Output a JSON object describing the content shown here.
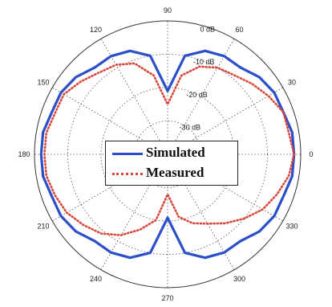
{
  "chart_data": {
    "type": "polar-line",
    "radial_axis": {
      "unit": "dB",
      "ticks": [
        {
          "value": 0,
          "label": "0 dB"
        },
        {
          "value": -10,
          "label": "-10 dB"
        },
        {
          "value": -20,
          "label": "-20 dB"
        },
        {
          "value": -30,
          "label": "-30 dB"
        }
      ],
      "range": [
        -40,
        0
      ]
    },
    "angular_axis": {
      "unit": "deg",
      "ticks": [
        0,
        30,
        60,
        90,
        120,
        150,
        180,
        210,
        240,
        270,
        300,
        330
      ],
      "tick_labels": [
        "0",
        "30",
        "60",
        "90",
        "120",
        "150",
        "180",
        "210",
        "240",
        "270",
        "300",
        "330"
      ]
    },
    "grid": true,
    "legend_placement": "center",
    "series": [
      {
        "name": "Simulated",
        "color": "#2b4fc9",
        "style": "solid",
        "points": [
          [
            0,
            -2
          ],
          [
            10,
            -2
          ],
          [
            20,
            -3
          ],
          [
            30,
            -3
          ],
          [
            40,
            -4
          ],
          [
            50,
            -6
          ],
          [
            60,
            -6
          ],
          [
            70,
            -7
          ],
          [
            80,
            -10
          ],
          [
            90,
            -21
          ],
          [
            100,
            -10
          ],
          [
            110,
            -7
          ],
          [
            120,
            -6
          ],
          [
            130,
            -6
          ],
          [
            140,
            -4
          ],
          [
            150,
            -3
          ],
          [
            160,
            -3
          ],
          [
            170,
            -2
          ],
          [
            180,
            -2
          ],
          [
            190,
            -2
          ],
          [
            200,
            -3
          ],
          [
            210,
            -3
          ],
          [
            220,
            -4
          ],
          [
            230,
            -6
          ],
          [
            240,
            -6
          ],
          [
            250,
            -7
          ],
          [
            260,
            -10
          ],
          [
            270,
            -21
          ],
          [
            280,
            -10
          ],
          [
            290,
            -7
          ],
          [
            300,
            -6
          ],
          [
            310,
            -6
          ],
          [
            320,
            -4
          ],
          [
            330,
            -3
          ],
          [
            340,
            -3
          ],
          [
            350,
            -2
          ]
        ]
      },
      {
        "name": "Measured",
        "color": "#d9473b",
        "style": "dotted",
        "points": [
          [
            0,
            -2
          ],
          [
            10,
            -3
          ],
          [
            20,
            -3
          ],
          [
            30,
            -5
          ],
          [
            40,
            -7
          ],
          [
            50,
            -9
          ],
          [
            60,
            -10
          ],
          [
            70,
            -12
          ],
          [
            80,
            -16
          ],
          [
            90,
            -25
          ],
          [
            100,
            -16
          ],
          [
            110,
            -11
          ],
          [
            120,
            -9
          ],
          [
            130,
            -8
          ],
          [
            140,
            -6
          ],
          [
            150,
            -4
          ],
          [
            160,
            -4
          ],
          [
            170,
            -3
          ],
          [
            180,
            -3
          ],
          [
            190,
            -3
          ],
          [
            200,
            -4
          ],
          [
            210,
            -5
          ],
          [
            220,
            -7
          ],
          [
            230,
            -9
          ],
          [
            240,
            -12
          ],
          [
            250,
            -16
          ],
          [
            260,
            -20
          ],
          [
            270,
            -28
          ],
          [
            280,
            -21
          ],
          [
            290,
            -18
          ],
          [
            300,
            -16
          ],
          [
            310,
            -13
          ],
          [
            320,
            -10
          ],
          [
            330,
            -7
          ],
          [
            340,
            -5
          ],
          [
            350,
            -3
          ]
        ]
      }
    ]
  }
}
